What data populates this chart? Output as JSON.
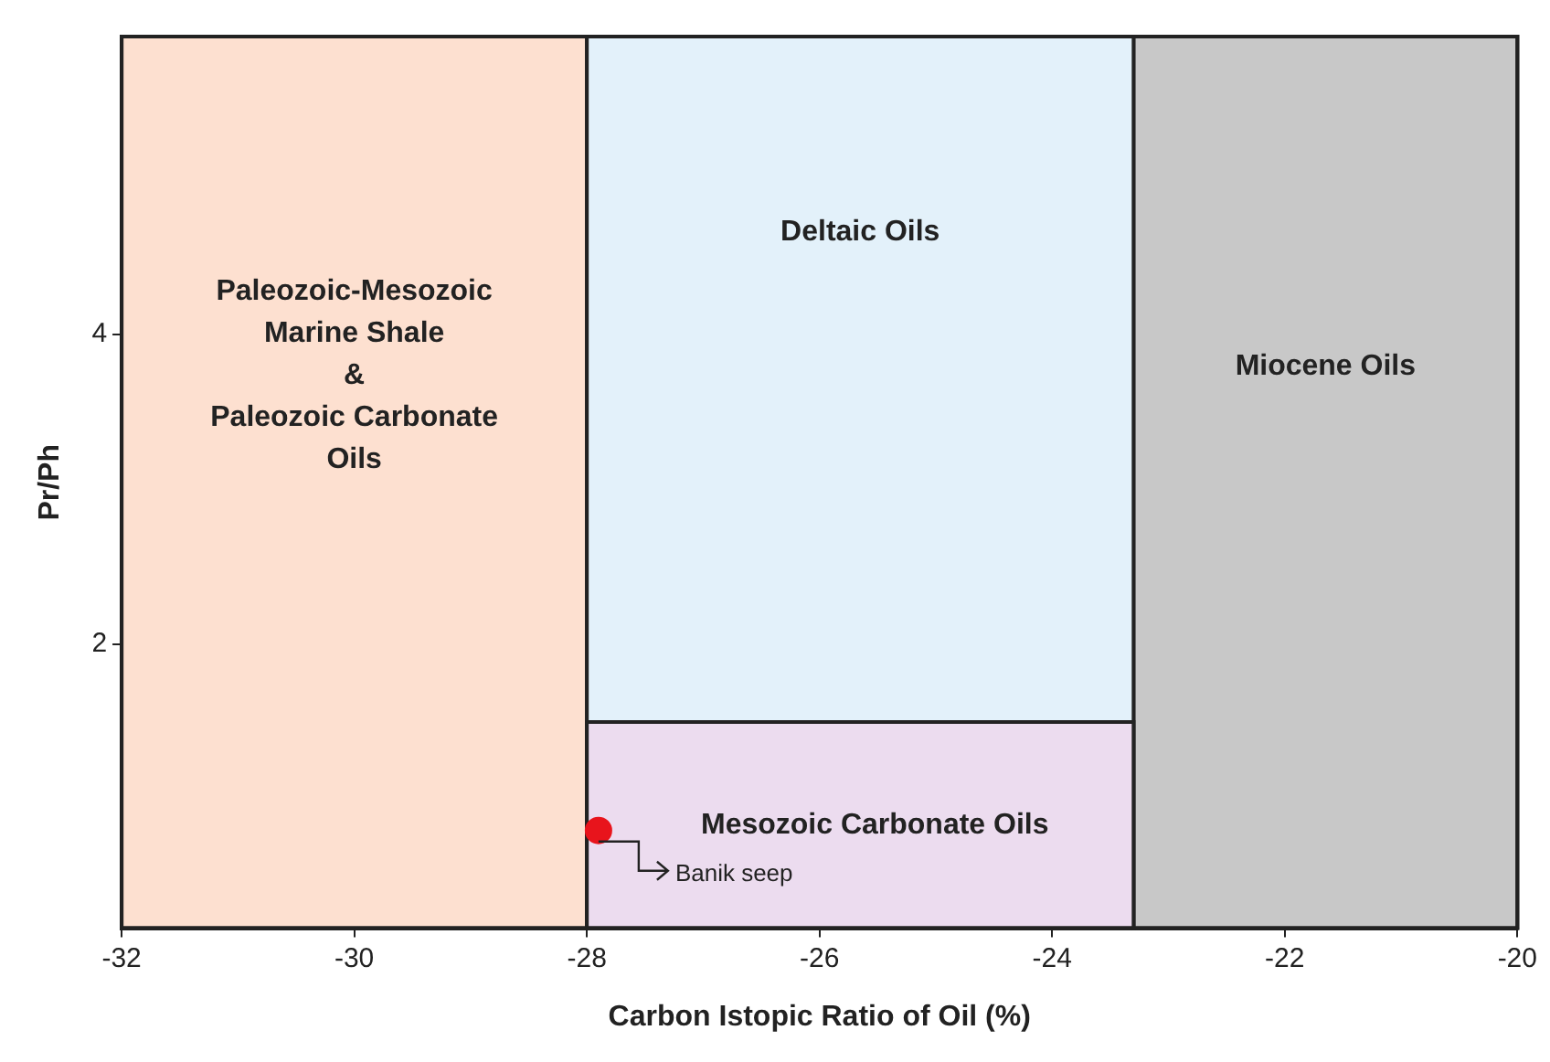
{
  "chart_data": {
    "type": "scatter",
    "xlabel": "Carbon Istopic Ratio of Oil (%)",
    "ylabel": "Pr/Ph",
    "xlim": [
      -32,
      -20
    ],
    "xticks": [
      -32,
      -30,
      -28,
      -26,
      -24,
      -22,
      -20
    ],
    "ylim": [
      0.17,
      5.92
    ],
    "yticks": [
      2,
      4
    ],
    "legend": false,
    "marker": "circle",
    "series": [
      {
        "x": [
          -27.9
        ],
        "values": [
          0.8
        ],
        "color": "#e8141c"
      }
    ],
    "bands": [
      {
        "axis": "x",
        "from": -32,
        "to": -28,
        "label": "Paleozoic-Mesozoic\nMarine Shale\n&\nPaleozoic Carbonate\nOils",
        "color": "#fde0d0"
      },
      {
        "axis": "x",
        "from": -23.3,
        "to": -20,
        "label": "Miocene Oils",
        "color": "#c8c8c8"
      },
      {
        "axis": "x",
        "from": -28,
        "to": -23.3,
        "label": "Deltaic Oils",
        "color": "#e3f1fa"
      },
      {
        "axis": "y",
        "from": 0.17,
        "to": 1.5,
        "label": "Mesozoic Carbonate Oils",
        "color": "#ecdcef"
      }
    ],
    "annotations": [
      {
        "text": "Banik seep",
        "x": -27.9,
        "y": 0.8
      }
    ]
  }
}
